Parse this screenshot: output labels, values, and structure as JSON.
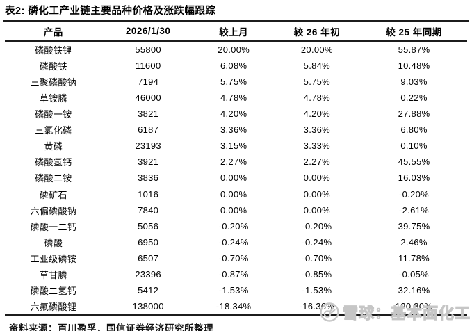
{
  "title": "表2: 磷化工产业链主要品种价格及涨跌幅跟踪",
  "table": {
    "columns": [
      "产品",
      "2026/1/30",
      "较上月",
      "较 26 年初",
      "较 25 年同期"
    ],
    "column_keys": [
      "product",
      "price",
      "vs_last_month",
      "vs_year_start",
      "vs_last_year"
    ],
    "rows": [
      {
        "product": "磷酸铁锂",
        "price": "55800",
        "vs_last_month": "20.00%",
        "vs_year_start": "20.00%",
        "vs_last_year": "55.87%"
      },
      {
        "product": "磷酸铁",
        "price": "11600",
        "vs_last_month": "6.08%",
        "vs_year_start": "5.84%",
        "vs_last_year": "10.48%"
      },
      {
        "product": "三聚磷酸钠",
        "price": "7194",
        "vs_last_month": "5.75%",
        "vs_year_start": "5.75%",
        "vs_last_year": "9.03%"
      },
      {
        "product": "草铵膦",
        "price": "46000",
        "vs_last_month": "4.78%",
        "vs_year_start": "4.78%",
        "vs_last_year": "0.22%"
      },
      {
        "product": "磷酸一铵",
        "price": "3821",
        "vs_last_month": "4.20%",
        "vs_year_start": "4.20%",
        "vs_last_year": "27.88%"
      },
      {
        "product": "三氯化磷",
        "price": "6187",
        "vs_last_month": "3.36%",
        "vs_year_start": "3.36%",
        "vs_last_year": "6.80%"
      },
      {
        "product": "黄磷",
        "price": "23193",
        "vs_last_month": "3.15%",
        "vs_year_start": "3.33%",
        "vs_last_year": "0.10%"
      },
      {
        "product": "磷酸氢钙",
        "price": "3921",
        "vs_last_month": "2.27%",
        "vs_year_start": "2.27%",
        "vs_last_year": "45.55%"
      },
      {
        "product": "磷酸二铵",
        "price": "3836",
        "vs_last_month": "0.00%",
        "vs_year_start": "0.00%",
        "vs_last_year": "16.03%"
      },
      {
        "product": "磷矿石",
        "price": "1016",
        "vs_last_month": "0.00%",
        "vs_year_start": "0.00%",
        "vs_last_year": "-0.20%"
      },
      {
        "product": "六偏磷酸钠",
        "price": "7840",
        "vs_last_month": "0.00%",
        "vs_year_start": "0.00%",
        "vs_last_year": "-2.61%"
      },
      {
        "product": "磷酸一二钙",
        "price": "5056",
        "vs_last_month": "-0.20%",
        "vs_year_start": "-0.20%",
        "vs_last_year": "39.75%"
      },
      {
        "product": "磷酸",
        "price": "6950",
        "vs_last_month": "-0.24%",
        "vs_year_start": "-0.24%",
        "vs_last_year": "2.46%"
      },
      {
        "product": "工业级磷铵",
        "price": "6507",
        "vs_last_month": "-0.70%",
        "vs_year_start": "-0.70%",
        "vs_last_year": "11.78%"
      },
      {
        "product": "草甘膦",
        "price": "23396",
        "vs_last_month": "-0.87%",
        "vs_year_start": "-0.85%",
        "vs_last_year": "-0.05%"
      },
      {
        "product": "磷酸二氢钙",
        "price": "5412",
        "vs_last_month": "-1.53%",
        "vs_year_start": "-1.53%",
        "vs_last_year": "32.16%"
      },
      {
        "product": "六氟磷酸锂",
        "price": "138000",
        "vs_last_month": "-18.34%",
        "vs_year_start": "-16.36%",
        "vs_last_year": "120.80%"
      }
    ]
  },
  "footer": {
    "source": "资料来源：百川盈孚，国信证券经济研究所整理"
  },
  "watermark": {
    "text": "雪球：基本面化工",
    "logo": "xueqiu-snowball-logo",
    "color": "#c6c6c6"
  },
  "colors": {
    "text": "#000000",
    "rule": "#1c1c1c",
    "background": "#ffffff",
    "watermark": "#c6c6c6"
  }
}
